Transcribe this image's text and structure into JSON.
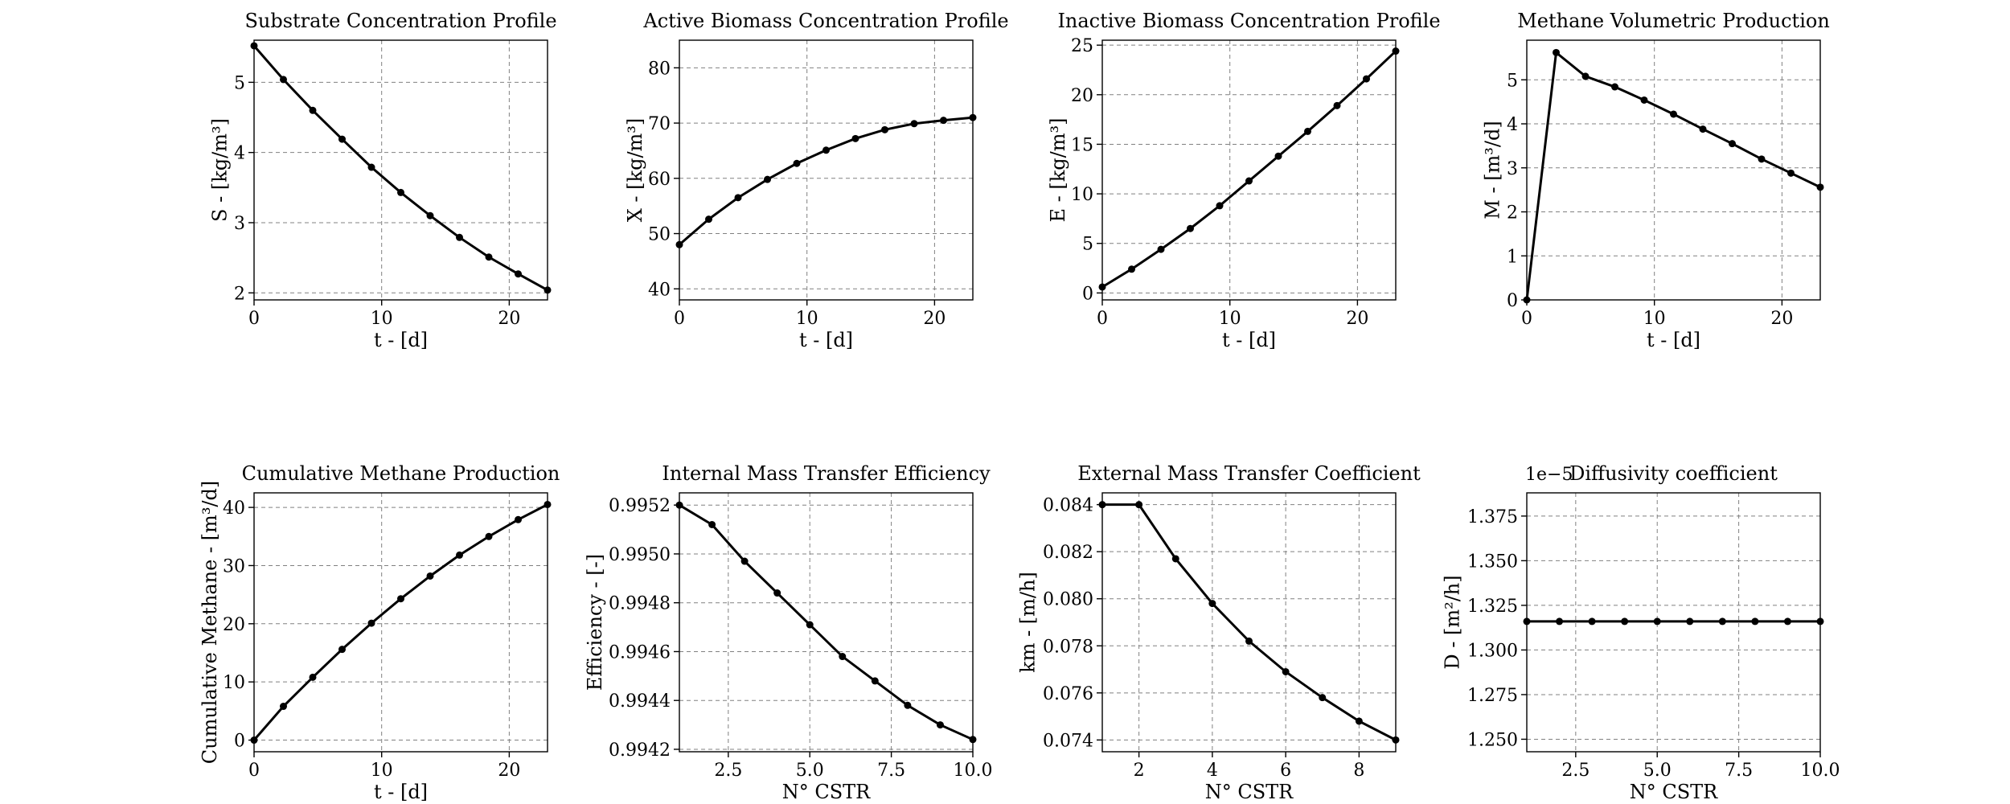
{
  "chart_data": [
    {
      "type": "line",
      "title": "Substrate Concentration Profile",
      "xlabel": "t - [d]",
      "ylabel": "S - [kg/m³]",
      "xlim": [
        0,
        23
      ],
      "ylim": [
        1.9,
        5.6
      ],
      "xticks": [
        0,
        10,
        20
      ],
      "xtick_labels": [
        "0",
        "10",
        "20"
      ],
      "yticks": [
        2,
        3,
        4,
        5
      ],
      "ytick_labels": [
        "2",
        "3",
        "4",
        "5"
      ],
      "grid": true,
      "x": [
        0,
        2.3,
        4.6,
        6.9,
        9.2,
        11.5,
        13.8,
        16.1,
        18.4,
        20.7,
        23
      ],
      "series": [
        {
          "values": [
            5.52,
            5.04,
            4.6,
            4.19,
            3.79,
            3.43,
            3.1,
            2.79,
            2.51,
            2.27,
            2.04
          ]
        }
      ]
    },
    {
      "type": "line",
      "title": "Active Biomass Concentration Profile",
      "xlabel": "t - [d]",
      "ylabel": "X - [kg/m³]",
      "xlim": [
        0,
        23
      ],
      "ylim": [
        38,
        85
      ],
      "xticks": [
        0,
        10,
        20
      ],
      "xtick_labels": [
        "0",
        "10",
        "20"
      ],
      "yticks": [
        40,
        50,
        60,
        70,
        80
      ],
      "ytick_labels": [
        "40",
        "50",
        "60",
        "70",
        "80"
      ],
      "grid": true,
      "x": [
        0,
        2.3,
        4.6,
        6.9,
        9.2,
        11.5,
        13.8,
        16.1,
        18.4,
        20.7,
        23
      ],
      "series": [
        {
          "values": [
            48,
            52.6,
            56.5,
            59.8,
            62.7,
            65.1,
            67.2,
            68.8,
            69.9,
            70.5,
            71
          ]
        }
      ]
    },
    {
      "type": "line",
      "title": "Inactive Biomass Concentration Profile",
      "xlabel": "t - [d]",
      "ylabel": "E - [kg/m³]",
      "xlim": [
        0,
        23
      ],
      "ylim": [
        -0.7,
        25.5
      ],
      "xticks": [
        0,
        10,
        20
      ],
      "xtick_labels": [
        "0",
        "10",
        "20"
      ],
      "yticks": [
        0,
        5,
        10,
        15,
        20,
        25
      ],
      "ytick_labels": [
        "0",
        "5",
        "10",
        "15",
        "20",
        "25"
      ],
      "grid": true,
      "x": [
        0,
        2.3,
        4.6,
        6.9,
        9.2,
        11.5,
        13.8,
        16.1,
        18.4,
        20.7,
        23
      ],
      "series": [
        {
          "values": [
            0.6,
            2.4,
            4.4,
            6.5,
            8.8,
            11.3,
            13.8,
            16.3,
            18.9,
            21.6,
            24.4
          ]
        }
      ]
    },
    {
      "type": "line",
      "title": "Methane Volumetric Production",
      "xlabel": "t - [d]",
      "ylabel": "M - [m³/d]",
      "xlim": [
        0,
        23
      ],
      "ylim": [
        0,
        5.9
      ],
      "xticks": [
        0,
        10,
        20
      ],
      "xtick_labels": [
        "0",
        "10",
        "20"
      ],
      "yticks": [
        0,
        1,
        2,
        3,
        4,
        5
      ],
      "ytick_labels": [
        "0",
        "1",
        "2",
        "3",
        "4",
        "5"
      ],
      "grid": true,
      "x": [
        0,
        2.3,
        4.6,
        6.9,
        9.2,
        11.5,
        13.8,
        16.1,
        18.4,
        20.7,
        23
      ],
      "series": [
        {
          "values": [
            0,
            5.62,
            5.08,
            4.84,
            4.54,
            4.22,
            3.88,
            3.55,
            3.2,
            2.88,
            2.56
          ]
        }
      ]
    },
    {
      "type": "line",
      "title": "Cumulative Methane Production",
      "xlabel": "t - [d]",
      "ylabel": "Cumulative Methane - [m³/d]",
      "xlim": [
        0,
        23
      ],
      "ylim": [
        -2,
        42.5
      ],
      "xticks": [
        0,
        10,
        20
      ],
      "xtick_labels": [
        "0",
        "10",
        "20"
      ],
      "yticks": [
        0,
        10,
        20,
        30,
        40
      ],
      "ytick_labels": [
        "0",
        "10",
        "20",
        "30",
        "40"
      ],
      "grid": true,
      "x": [
        0,
        2.3,
        4.6,
        6.9,
        9.2,
        11.5,
        13.8,
        16.1,
        18.4,
        20.7,
        23
      ],
      "series": [
        {
          "values": [
            0,
            5.8,
            10.8,
            15.6,
            20.1,
            24.3,
            28.2,
            31.8,
            35,
            37.9,
            40.5
          ]
        }
      ]
    },
    {
      "type": "line",
      "title": "Internal Mass Transfer Efficiency",
      "xlabel": "N° CSTR",
      "ylabel": "Efficiency - [-]",
      "xlim": [
        1,
        10
      ],
      "ylim": [
        0.99419,
        0.99525
      ],
      "xticks": [
        2.5,
        5,
        7.5,
        10
      ],
      "xtick_labels": [
        "2.5",
        "5.0",
        "7.5",
        "10.0"
      ],
      "yticks": [
        0.9942,
        0.9944,
        0.9946,
        0.9948,
        0.995,
        0.9952
      ],
      "ytick_labels": [
        "0.9942",
        "0.9944",
        "0.9946",
        "0.9948",
        "0.9950",
        "0.9952"
      ],
      "grid": true,
      "x": [
        1,
        2,
        3,
        4,
        5,
        6,
        7,
        8,
        9,
        10
      ],
      "series": [
        {
          "values": [
            0.9952,
            0.99512,
            0.99497,
            0.99484,
            0.99471,
            0.99458,
            0.99448,
            0.99438,
            0.9943,
            0.99424
          ]
        }
      ]
    },
    {
      "type": "line",
      "title": "External Mass Transfer Coefficient",
      "xlabel": "N° CSTR",
      "ylabel": "km - [m/h]",
      "xlim": [
        1,
        9
      ],
      "ylim": [
        0.0735,
        0.0845
      ],
      "xticks": [
        2,
        4,
        6,
        8
      ],
      "xtick_labels": [
        "2",
        "4",
        "6",
        "8"
      ],
      "yticks": [
        0.074,
        0.076,
        0.078,
        0.08,
        0.082,
        0.084
      ],
      "ytick_labels": [
        "0.074",
        "0.076",
        "0.078",
        "0.080",
        "0.082",
        "0.084"
      ],
      "grid": true,
      "x": [
        1,
        2,
        3,
        4,
        5,
        6,
        7,
        8,
        9
      ],
      "series": [
        {
          "values": [
            0.084,
            0.084,
            0.0817,
            0.0798,
            0.0782,
            0.0769,
            0.0758,
            0.0748,
            0.074
          ]
        }
      ]
    },
    {
      "type": "line",
      "title": "Diffusivity coefficient",
      "xlabel": "N° CSTR",
      "ylabel": "D - [m²/h]",
      "offset_label": "1e−5",
      "xlim": [
        1,
        10
      ],
      "ylim": [
        1.243,
        1.388
      ],
      "xticks": [
        2.5,
        5,
        7.5,
        10
      ],
      "xtick_labels": [
        "2.5",
        "5.0",
        "7.5",
        "10.0"
      ],
      "yticks": [
        1.25,
        1.275,
        1.3,
        1.325,
        1.35,
        1.375
      ],
      "ytick_labels": [
        "1.250",
        "1.275",
        "1.300",
        "1.325",
        "1.350",
        "1.375"
      ],
      "grid": true,
      "x": [
        1,
        2,
        3,
        4,
        5,
        6,
        7,
        8,
        9,
        10
      ],
      "series": [
        {
          "values": [
            1.316,
            1.316,
            1.316,
            1.316,
            1.316,
            1.316,
            1.316,
            1.316,
            1.316,
            1.316
          ]
        }
      ]
    }
  ]
}
